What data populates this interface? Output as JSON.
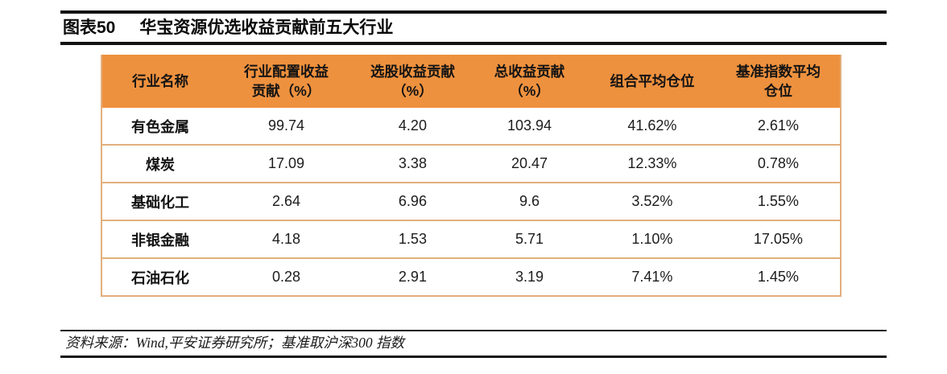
{
  "page": {
    "figure_label": "图表50",
    "figure_title": "华宝资源优选收益贡献前五大行业"
  },
  "table": {
    "headers": [
      "行业名称",
      "行业配置收益\n贡献（%）",
      "选股收益贡献\n（%）",
      "总收益贡献\n（%）",
      "组合平均仓位",
      "基准指数平均\n仓位"
    ],
    "rows": [
      {
        "industry": "有色金属",
        "values": [
          "99.74",
          "4.20",
          "103.94",
          "41.62%",
          "2.61%"
        ]
      },
      {
        "industry": "煤炭",
        "values": [
          "17.09",
          "3.38",
          "20.47",
          "12.33%",
          "0.78%"
        ]
      },
      {
        "industry": "基础化工",
        "values": [
          "2.64",
          "6.96",
          "9.6",
          "3.52%",
          "1.55%"
        ]
      },
      {
        "industry": "非银金融",
        "values": [
          "4.18",
          "1.53",
          "5.71",
          "1.10%",
          "17.05%"
        ]
      },
      {
        "industry": "石油石化",
        "values": [
          "0.28",
          "2.91",
          "3.19",
          "7.41%",
          "1.45%"
        ]
      }
    ]
  },
  "footer": {
    "source_text": "资料来源：Wind,平安证券研究所；基准取沪深300 指数"
  },
  "colors": {
    "header_orange": "#ee913e",
    "row_border_tan": "#e2af7d",
    "rule_black": "#121212"
  },
  "chart_data": {
    "type": "table",
    "title": "图表50 华宝资源优选收益贡献前五大行业",
    "columns": [
      "行业名称",
      "行业配置收益贡献（%）",
      "选股收益贡献（%）",
      "总收益贡献（%）",
      "组合平均仓位",
      "基准指数平均仓位"
    ],
    "rows": [
      [
        "有色金属",
        99.74,
        4.2,
        103.94,
        "41.62%",
        "2.61%"
      ],
      [
        "煤炭",
        17.09,
        3.38,
        20.47,
        "12.33%",
        "0.78%"
      ],
      [
        "基础化工",
        2.64,
        6.96,
        9.6,
        "3.52%",
        "1.55%"
      ],
      [
        "非银金融",
        4.18,
        1.53,
        5.71,
        "1.10%",
        "17.05%"
      ],
      [
        "石油石化",
        0.28,
        2.91,
        3.19,
        "7.41%",
        "1.45%"
      ]
    ],
    "source": "资料来源：Wind,平安证券研究所；基准取沪深300 指数"
  }
}
